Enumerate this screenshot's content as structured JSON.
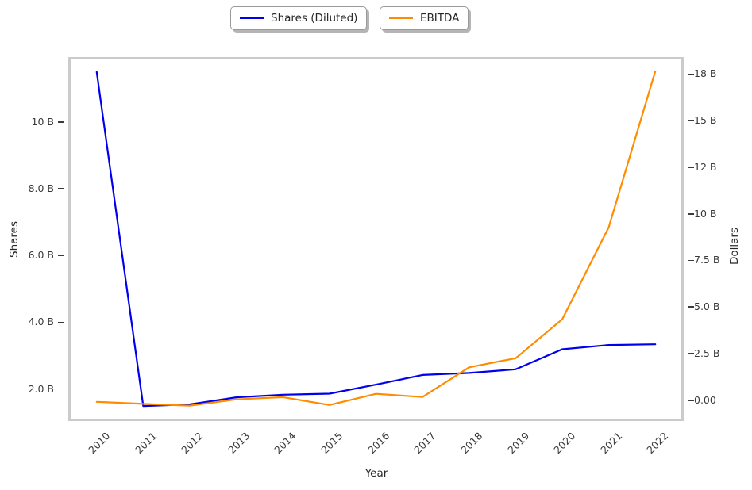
{
  "chart_data": {
    "type": "line",
    "title": "",
    "xlabel": "Year",
    "x": [
      2010,
      2011,
      2012,
      2013,
      2014,
      2015,
      2016,
      2017,
      2018,
      2019,
      2020,
      2021,
      2022
    ],
    "x_tick_labels": [
      "2010",
      "2011",
      "2012",
      "2013",
      "2014",
      "2015",
      "2016",
      "2017",
      "2018",
      "2019",
      "2020",
      "2021",
      "2022"
    ],
    "x_range": [
      2009.39,
      2022.61
    ],
    "grid": false,
    "legend_position": "top-center",
    "series": [
      {
        "name": "Shares (Diluted)",
        "axis": "left",
        "color": "#0000ee",
        "values": [
          11.5,
          1.49,
          1.54,
          1.75,
          1.83,
          1.86,
          2.13,
          2.42,
          2.48,
          2.59,
          3.19,
          3.32,
          3.34
        ]
      },
      {
        "name": "EBITDA",
        "axis": "right",
        "color": "#ff8c00",
        "values": [
          -0.09,
          -0.2,
          -0.3,
          0.04,
          0.16,
          -0.26,
          0.34,
          0.17,
          1.76,
          2.25,
          4.34,
          9.28,
          17.65
        ]
      }
    ],
    "left_axis": {
      "label": "Shares",
      "unit": "B",
      "range": [
        1.04,
        11.95
      ],
      "ticks": [
        2,
        4,
        6,
        8,
        10
      ],
      "tick_labels": [
        "2.0 B",
        "4.0 B",
        "6.0 B",
        "8.0 B",
        "10 B"
      ]
    },
    "right_axis": {
      "label": "Dollars",
      "unit": "B",
      "range": [
        -1.12,
        18.41
      ],
      "ticks": [
        0,
        2.5,
        5,
        7.5,
        10,
        12.5,
        15,
        17.5
      ],
      "tick_labels": [
        "0.00",
        "2.5 B",
        "5.0 B",
        "7.5 B",
        "10 B",
        "12 B",
        "15 B",
        "18 B"
      ]
    }
  },
  "colors": {
    "spine": "#cbcbcb",
    "tick": "#3b3b3b",
    "text": "#262626",
    "background": "#ffffff"
  }
}
